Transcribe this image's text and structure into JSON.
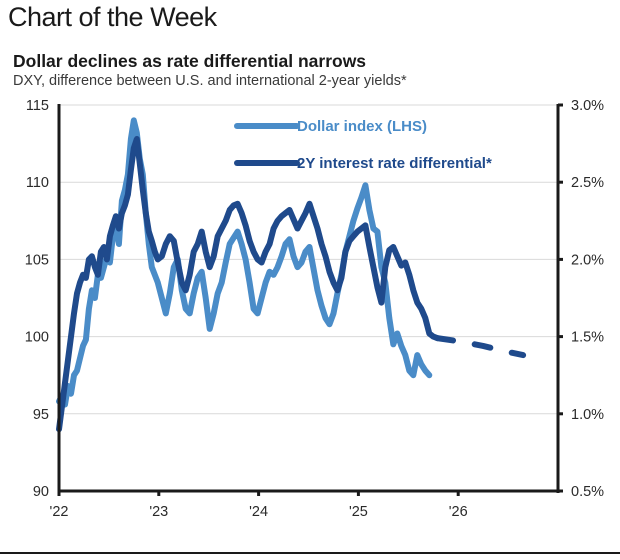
{
  "header": {
    "page_title": "Chart of the Week"
  },
  "chart_data": {
    "type": "line",
    "title": "Dollar declines as rate differential narrows",
    "subtitle": "DXY, difference between U.S. and international 2-year yields*",
    "xlabel": "",
    "ylabel_left": "",
    "ylabel_right": "",
    "x_ticks": [
      "'22",
      "'23",
      "'24",
      "'25",
      "'26"
    ],
    "x_tick_values": [
      2022,
      2023,
      2024,
      2025,
      2026
    ],
    "xlim": [
      2022,
      2027
    ],
    "y_left": {
      "ticks": [
        "90",
        "95",
        "100",
        "105",
        "110",
        "115"
      ],
      "tick_values": [
        90,
        95,
        100,
        105,
        110,
        115
      ],
      "lim": [
        90,
        115
      ]
    },
    "y_right": {
      "ticks": [
        "0.5%",
        "1.0%",
        "1.5%",
        "2.0%",
        "2.5%",
        "3.0%"
      ],
      "tick_values": [
        0.5,
        1.0,
        1.5,
        2.0,
        2.5,
        3.0
      ],
      "lim": [
        0.5,
        3.0
      ]
    },
    "grid": true,
    "legend_position": "top-center",
    "colors": {
      "dollar": "#4a8cc8",
      "differential": "#1f4a8c",
      "axis": "#1a1a1a",
      "grid": "#d9d9d9"
    },
    "series": [
      {
        "name": "Dollar index (LHS)",
        "axis": "left",
        "style": "solid",
        "x": [
          2022.0,
          2022.03,
          2022.06,
          2022.09,
          2022.12,
          2022.15,
          2022.18,
          2022.21,
          2022.24,
          2022.27,
          2022.3,
          2022.33,
          2022.36,
          2022.39,
          2022.42,
          2022.45,
          2022.48,
          2022.51,
          2022.54,
          2022.57,
          2022.6,
          2022.63,
          2022.66,
          2022.69,
          2022.72,
          2022.75,
          2022.78,
          2022.81,
          2022.84,
          2022.87,
          2022.9,
          2022.93,
          2022.96,
          2022.99,
          2023.03,
          2023.07,
          2023.11,
          2023.15,
          2023.19,
          2023.23,
          2023.27,
          2023.31,
          2023.35,
          2023.39,
          2023.43,
          2023.47,
          2023.51,
          2023.55,
          2023.59,
          2023.63,
          2023.67,
          2023.71,
          2023.75,
          2023.79,
          2023.83,
          2023.87,
          2023.91,
          2023.95,
          2023.99,
          2024.03,
          2024.07,
          2024.11,
          2024.15,
          2024.19,
          2024.23,
          2024.27,
          2024.31,
          2024.35,
          2024.39,
          2024.43,
          2024.47,
          2024.51,
          2024.55,
          2024.59,
          2024.63,
          2024.67,
          2024.71,
          2024.75,
          2024.79,
          2024.83,
          2024.87,
          2024.91,
          2024.95,
          2024.99,
          2025.03,
          2025.07,
          2025.11,
          2025.15,
          2025.19,
          2025.23,
          2025.27,
          2025.31,
          2025.35,
          2025.39,
          2025.43,
          2025.47,
          2025.51,
          2025.55,
          2025.59,
          2025.63,
          2025.67,
          2025.71
        ],
        "values": [
          95.8,
          96.2,
          95.6,
          96.8,
          96.3,
          97.5,
          97.8,
          98.6,
          99.4,
          99.8,
          101.8,
          103.0,
          102.5,
          104.0,
          103.8,
          104.5,
          105.2,
          104.8,
          106.5,
          107.2,
          106.0,
          108.8,
          109.5,
          110.5,
          112.8,
          114.0,
          113.2,
          111.5,
          110.5,
          108.0,
          106.0,
          104.5,
          104.0,
          103.5,
          102.5,
          101.5,
          102.8,
          104.5,
          105.0,
          103.0,
          101.8,
          101.5,
          102.8,
          103.8,
          104.2,
          102.5,
          100.5,
          101.5,
          102.8,
          103.5,
          104.8,
          106.0,
          106.4,
          106.8,
          106.0,
          105.0,
          103.5,
          101.8,
          101.5,
          102.5,
          103.5,
          104.2,
          104.0,
          104.5,
          105.2,
          106.0,
          106.3,
          105.2,
          104.5,
          104.8,
          105.5,
          105.8,
          104.4,
          103.0,
          102.0,
          101.2,
          100.8,
          101.5,
          102.8,
          104.0,
          105.5,
          106.5,
          107.5,
          108.3,
          109.0,
          109.8,
          108.2,
          107.0,
          106.8,
          104.5,
          103.5,
          101.2,
          99.5,
          100.2,
          99.4,
          98.8,
          97.8,
          97.5,
          98.8,
          98.2,
          97.8,
          97.5
        ]
      },
      {
        "name": "2Y interest rate differential*",
        "axis": "right",
        "style": "solid",
        "x": [
          2022.0,
          2022.03,
          2022.06,
          2022.09,
          2022.12,
          2022.15,
          2022.18,
          2022.21,
          2022.24,
          2022.27,
          2022.3,
          2022.33,
          2022.36,
          2022.39,
          2022.42,
          2022.45,
          2022.48,
          2022.51,
          2022.54,
          2022.57,
          2022.6,
          2022.63,
          2022.66,
          2022.69,
          2022.72,
          2022.75,
          2022.78,
          2022.81,
          2022.84,
          2022.87,
          2022.9,
          2022.93,
          2022.96,
          2022.99,
          2023.03,
          2023.07,
          2023.11,
          2023.15,
          2023.19,
          2023.23,
          2023.27,
          2023.31,
          2023.35,
          2023.39,
          2023.43,
          2023.47,
          2023.51,
          2023.55,
          2023.59,
          2023.63,
          2023.67,
          2023.71,
          2023.75,
          2023.79,
          2023.83,
          2023.87,
          2023.91,
          2023.95,
          2023.99,
          2024.03,
          2024.07,
          2024.11,
          2024.15,
          2024.19,
          2024.23,
          2024.27,
          2024.31,
          2024.35,
          2024.39,
          2024.43,
          2024.47,
          2024.51,
          2024.55,
          2024.59,
          2024.63,
          2024.67,
          2024.71,
          2024.75,
          2024.79,
          2024.83,
          2024.87,
          2024.91,
          2024.95,
          2024.99,
          2025.03,
          2025.07,
          2025.11,
          2025.15,
          2025.19,
          2025.23,
          2025.27,
          2025.31,
          2025.35,
          2025.39,
          2025.43,
          2025.47,
          2025.51,
          2025.55,
          2025.59,
          2025.63,
          2025.67,
          2025.71,
          2025.75,
          2025.79
        ],
        "values": [
          0.9,
          1.05,
          1.2,
          1.35,
          1.5,
          1.65,
          1.78,
          1.85,
          1.9,
          1.88,
          2.0,
          2.02,
          1.95,
          1.9,
          2.05,
          2.08,
          2.0,
          2.15,
          2.22,
          2.28,
          2.2,
          2.3,
          2.35,
          2.42,
          2.58,
          2.72,
          2.78,
          2.62,
          2.45,
          2.3,
          2.18,
          2.12,
          2.05,
          2.0,
          2.02,
          2.1,
          2.15,
          2.12,
          1.98,
          1.85,
          1.8,
          1.9,
          2.05,
          2.1,
          2.18,
          2.05,
          1.95,
          2.02,
          2.15,
          2.2,
          2.25,
          2.32,
          2.35,
          2.36,
          2.3,
          2.22,
          2.12,
          2.05,
          2.0,
          1.98,
          2.05,
          2.1,
          2.2,
          2.25,
          2.28,
          2.3,
          2.32,
          2.26,
          2.2,
          2.25,
          2.3,
          2.36,
          2.28,
          2.2,
          2.1,
          2.02,
          1.92,
          1.85,
          1.8,
          1.88,
          2.05,
          2.12,
          2.15,
          2.18,
          2.2,
          2.22,
          2.08,
          1.95,
          1.82,
          1.72,
          1.95,
          2.06,
          2.08,
          2.02,
          1.96,
          1.98,
          1.9,
          1.8,
          1.72,
          1.68,
          1.62,
          1.52,
          1.5,
          1.49
        ]
      },
      {
        "name": "2Y interest rate differential* (projection)",
        "axis": "right",
        "style": "dashed",
        "x": [
          2025.79,
          2026.0,
          2026.25,
          2026.5,
          2026.65
        ],
        "values": [
          1.49,
          1.47,
          1.44,
          1.4,
          1.38
        ]
      }
    ],
    "legend": [
      {
        "label": "Dollar index (LHS)",
        "series": "dollar"
      },
      {
        "label": "2Y interest rate differential*",
        "series": "differential"
      }
    ]
  }
}
